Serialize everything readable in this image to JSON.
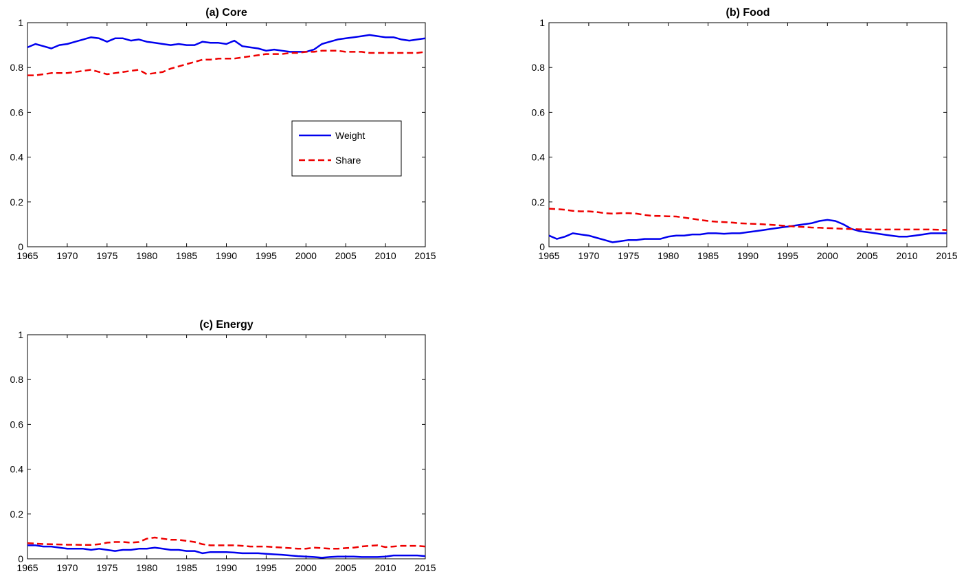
{
  "chart_data": [
    {
      "type": "line",
      "title": "(a) Core",
      "xlim": [
        1965,
        2015
      ],
      "ylim": [
        0,
        1
      ],
      "xticks": [
        "1965",
        "1970",
        "1975",
        "1980",
        "1985",
        "1990",
        "1995",
        "2000",
        "2005",
        "2010",
        "2015"
      ],
      "yticks": [
        "0",
        "0.2",
        "0.4",
        "0.6",
        "0.8",
        "1"
      ],
      "grid": false,
      "legend": {
        "placement": "center-right",
        "entries": [
          "Weight",
          "Share"
        ]
      },
      "series": [
        {
          "name": "Weight",
          "color": "#0000ee",
          "style": "solid",
          "x": [
            1965,
            1966,
            1967,
            1968,
            1969,
            1970,
            1971,
            1972,
            1973,
            1974,
            1975,
            1976,
            1977,
            1978,
            1979,
            1980,
            1981,
            1982,
            1983,
            1984,
            1985,
            1986,
            1987,
            1988,
            1989,
            1990,
            1991,
            1992,
            1993,
            1994,
            1995,
            1996,
            1997,
            1998,
            1999,
            2000,
            2001,
            2002,
            2003,
            2004,
            2005,
            2006,
            2007,
            2008,
            2009,
            2010,
            2011,
            2012,
            2013,
            2014,
            2015
          ],
          "y": [
            0.89,
            0.905,
            0.895,
            0.885,
            0.9,
            0.905,
            0.915,
            0.925,
            0.935,
            0.93,
            0.915,
            0.93,
            0.93,
            0.92,
            0.925,
            0.915,
            0.91,
            0.905,
            0.9,
            0.905,
            0.9,
            0.9,
            0.915,
            0.91,
            0.91,
            0.905,
            0.92,
            0.895,
            0.89,
            0.885,
            0.875,
            0.88,
            0.875,
            0.87,
            0.87,
            0.87,
            0.88,
            0.905,
            0.915,
            0.925,
            0.93,
            0.935,
            0.94,
            0.945,
            0.94,
            0.935,
            0.935,
            0.925,
            0.92,
            0.925,
            0.93
          ]
        },
        {
          "name": "Share",
          "color": "#ee0000",
          "style": "dashed",
          "x": [
            1965,
            1966,
            1967,
            1968,
            1969,
            1970,
            1971,
            1972,
            1973,
            1974,
            1975,
            1976,
            1977,
            1978,
            1979,
            1980,
            1981,
            1982,
            1983,
            1984,
            1985,
            1986,
            1987,
            1988,
            1989,
            1990,
            1991,
            1992,
            1993,
            1994,
            1995,
            1996,
            1997,
            1998,
            1999,
            2000,
            2001,
            2002,
            2003,
            2004,
            2005,
            2006,
            2007,
            2008,
            2009,
            2010,
            2011,
            2012,
            2013,
            2014,
            2015
          ],
          "y": [
            0.765,
            0.765,
            0.77,
            0.775,
            0.775,
            0.775,
            0.78,
            0.785,
            0.79,
            0.78,
            0.77,
            0.775,
            0.78,
            0.785,
            0.79,
            0.77,
            0.775,
            0.78,
            0.795,
            0.805,
            0.815,
            0.825,
            0.835,
            0.835,
            0.84,
            0.84,
            0.84,
            0.845,
            0.85,
            0.855,
            0.86,
            0.86,
            0.86,
            0.865,
            0.865,
            0.87,
            0.87,
            0.875,
            0.875,
            0.875,
            0.87,
            0.87,
            0.87,
            0.865,
            0.865,
            0.865,
            0.865,
            0.865,
            0.865,
            0.865,
            0.87
          ]
        }
      ]
    },
    {
      "type": "line",
      "title": "(b) Food",
      "xlim": [
        1965,
        2015
      ],
      "ylim": [
        0,
        1
      ],
      "xticks": [
        "1965",
        "1970",
        "1975",
        "1980",
        "1985",
        "1990",
        "1995",
        "2000",
        "2005",
        "2010",
        "2015"
      ],
      "yticks": [
        "0",
        "0.2",
        "0.4",
        "0.6",
        "0.8",
        "1"
      ],
      "grid": false,
      "series": [
        {
          "name": "Weight",
          "color": "#0000ee",
          "style": "solid",
          "x": [
            1965,
            1966,
            1967,
            1968,
            1969,
            1970,
            1971,
            1972,
            1973,
            1974,
            1975,
            1976,
            1977,
            1978,
            1979,
            1980,
            1981,
            1982,
            1983,
            1984,
            1985,
            1986,
            1987,
            1988,
            1989,
            1990,
            1991,
            1992,
            1993,
            1994,
            1995,
            1996,
            1997,
            1998,
            1999,
            2000,
            2001,
            2002,
            2003,
            2004,
            2005,
            2006,
            2007,
            2008,
            2009,
            2010,
            2011,
            2012,
            2013,
            2014,
            2015
          ],
          "y": [
            0.05,
            0.035,
            0.045,
            0.06,
            0.055,
            0.05,
            0.04,
            0.03,
            0.02,
            0.025,
            0.03,
            0.03,
            0.035,
            0.035,
            0.035,
            0.045,
            0.05,
            0.05,
            0.055,
            0.055,
            0.06,
            0.06,
            0.058,
            0.06,
            0.06,
            0.065,
            0.07,
            0.075,
            0.08,
            0.085,
            0.09,
            0.095,
            0.1,
            0.105,
            0.115,
            0.12,
            0.115,
            0.1,
            0.08,
            0.07,
            0.065,
            0.06,
            0.055,
            0.05,
            0.045,
            0.045,
            0.05,
            0.055,
            0.06,
            0.06,
            0.06
          ]
        },
        {
          "name": "Share",
          "color": "#ee0000",
          "style": "dashed",
          "x": [
            1965,
            1966,
            1967,
            1968,
            1969,
            1970,
            1971,
            1972,
            1973,
            1974,
            1975,
            1976,
            1977,
            1978,
            1979,
            1980,
            1981,
            1982,
            1983,
            1984,
            1985,
            1986,
            1987,
            1988,
            1989,
            1990,
            1991,
            1992,
            1993,
            1994,
            1995,
            1996,
            1997,
            1998,
            1999,
            2000,
            2001,
            2002,
            2003,
            2004,
            2005,
            2006,
            2007,
            2008,
            2009,
            2010,
            2011,
            2012,
            2013,
            2014,
            2015
          ],
          "y": [
            0.17,
            0.168,
            0.165,
            0.16,
            0.158,
            0.158,
            0.155,
            0.15,
            0.148,
            0.15,
            0.15,
            0.148,
            0.142,
            0.138,
            0.137,
            0.136,
            0.135,
            0.13,
            0.125,
            0.12,
            0.115,
            0.112,
            0.11,
            0.108,
            0.105,
            0.103,
            0.102,
            0.1,
            0.098,
            0.095,
            0.093,
            0.09,
            0.088,
            0.086,
            0.085,
            0.083,
            0.082,
            0.08,
            0.079,
            0.078,
            0.078,
            0.077,
            0.077,
            0.077,
            0.077,
            0.077,
            0.077,
            0.077,
            0.077,
            0.076,
            0.075
          ]
        }
      ]
    },
    {
      "type": "line",
      "title": "(c) Energy",
      "xlim": [
        1965,
        2015
      ],
      "ylim": [
        0,
        1
      ],
      "xticks": [
        "1965",
        "1970",
        "1975",
        "1980",
        "1985",
        "1990",
        "1995",
        "2000",
        "2005",
        "2010",
        "2015"
      ],
      "yticks": [
        "0",
        "0.2",
        "0.4",
        "0.6",
        "0.8",
        "1"
      ],
      "grid": false,
      "series": [
        {
          "name": "Weight",
          "color": "#0000ee",
          "style": "solid",
          "x": [
            1965,
            1966,
            1967,
            1968,
            1969,
            1970,
            1971,
            1972,
            1973,
            1974,
            1975,
            1976,
            1977,
            1978,
            1979,
            1980,
            1981,
            1982,
            1983,
            1984,
            1985,
            1986,
            1987,
            1988,
            1989,
            1990,
            1991,
            1992,
            1993,
            1994,
            1995,
            1996,
            1997,
            1998,
            1999,
            2000,
            2001,
            2002,
            2003,
            2004,
            2005,
            2006,
            2007,
            2008,
            2009,
            2010,
            2011,
            2012,
            2013,
            2014,
            2015
          ],
          "y": [
            0.06,
            0.06,
            0.055,
            0.055,
            0.05,
            0.045,
            0.045,
            0.045,
            0.04,
            0.045,
            0.04,
            0.035,
            0.04,
            0.04,
            0.045,
            0.045,
            0.05,
            0.045,
            0.04,
            0.04,
            0.035,
            0.035,
            0.025,
            0.03,
            0.03,
            0.03,
            0.028,
            0.025,
            0.025,
            0.025,
            0.022,
            0.02,
            0.018,
            0.015,
            0.012,
            0.01,
            0.008,
            0.005,
            0.008,
            0.01,
            0.01,
            0.01,
            0.008,
            0.008,
            0.008,
            0.01,
            0.015,
            0.015,
            0.015,
            0.015,
            0.012
          ]
        },
        {
          "name": "Share",
          "color": "#ee0000",
          "style": "dashed",
          "x": [
            1965,
            1966,
            1967,
            1968,
            1969,
            1970,
            1971,
            1972,
            1973,
            1974,
            1975,
            1976,
            1977,
            1978,
            1979,
            1980,
            1981,
            1982,
            1983,
            1984,
            1985,
            1986,
            1987,
            1988,
            1989,
            1990,
            1991,
            1992,
            1993,
            1994,
            1995,
            1996,
            1997,
            1998,
            1999,
            2000,
            2001,
            2002,
            2003,
            2004,
            2005,
            2006,
            2007,
            2008,
            2009,
            2010,
            2011,
            2012,
            2013,
            2014,
            2015
          ],
          "y": [
            0.07,
            0.068,
            0.066,
            0.065,
            0.064,
            0.063,
            0.063,
            0.062,
            0.062,
            0.065,
            0.072,
            0.075,
            0.075,
            0.072,
            0.075,
            0.09,
            0.095,
            0.09,
            0.085,
            0.085,
            0.08,
            0.075,
            0.065,
            0.06,
            0.06,
            0.06,
            0.06,
            0.058,
            0.055,
            0.055,
            0.055,
            0.052,
            0.05,
            0.048,
            0.045,
            0.045,
            0.05,
            0.048,
            0.045,
            0.045,
            0.048,
            0.05,
            0.055,
            0.058,
            0.06,
            0.052,
            0.055,
            0.058,
            0.058,
            0.058,
            0.055
          ]
        }
      ]
    }
  ]
}
